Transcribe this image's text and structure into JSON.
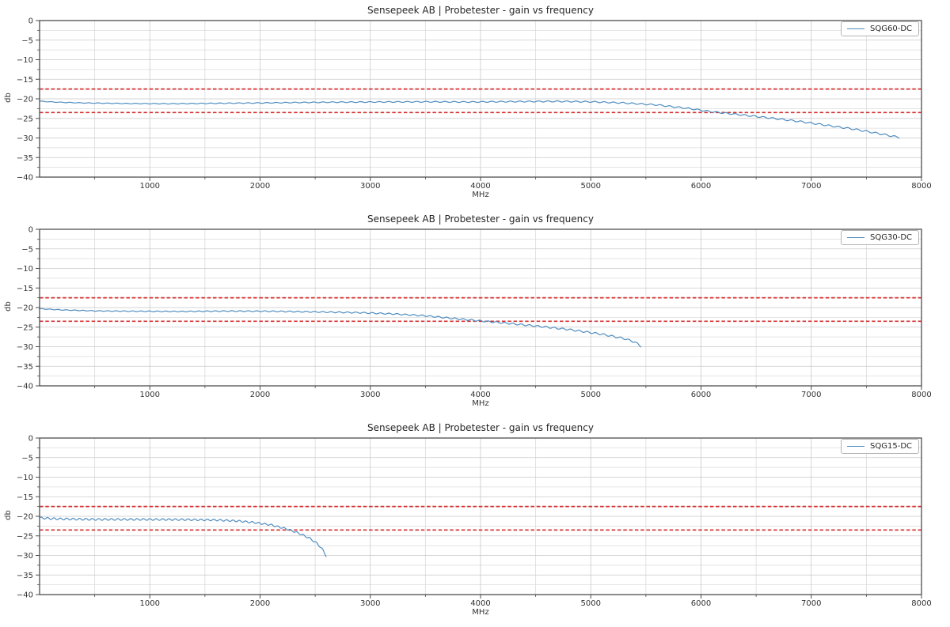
{
  "page": {
    "background": "#ffffff"
  },
  "colors": {
    "series": "#4f8dc0",
    "limit_line": "#d62f2f",
    "grid_major": "#c9c9c9",
    "grid_minor": "#dbdbdb",
    "spine": "#4d4d4d",
    "title_text": "#262626",
    "tick_text": "#333333"
  },
  "chart_data": [
    {
      "type": "line",
      "title": "Sensepeek AB | Probetester - gain vs frequency",
      "xlabel": "MHz",
      "ylabel": "db",
      "xlim": [
        0,
        8000
      ],
      "ylim": [
        -40,
        0
      ],
      "x_ticks": [
        1000,
        2000,
        3000,
        4000,
        5000,
        6000,
        7000,
        8000
      ],
      "x_tick_labels": [
        "1000",
        "2000",
        "3000",
        "4000",
        "5000",
        "6000",
        "7000",
        "8000"
      ],
      "y_ticks": [
        0,
        -5,
        -10,
        -15,
        -20,
        -25,
        -30,
        -35,
        -40
      ],
      "y_tick_labels": [
        "0",
        "−5",
        "−10",
        "−15",
        "−20",
        "−25",
        "−30",
        "−35",
        "−40"
      ],
      "x_minor_step": 500,
      "y_minor_step": 2.5,
      "grid": true,
      "legend": {
        "position": "upper right",
        "entries": [
          "SQG60-DC"
        ]
      },
      "limit_lines": {
        "values": [
          -17.5,
          -23.5
        ],
        "linestyle": "dashed"
      },
      "series": [
        {
          "name": "SQG60-DC",
          "points": [
            [
              0,
              -20.6
            ],
            [
              150,
              -20.85
            ],
            [
              400,
              -21.05
            ],
            [
              800,
              -21.2
            ],
            [
              1200,
              -21.25
            ],
            [
              1600,
              -21.15
            ],
            [
              2000,
              -21.05
            ],
            [
              2300,
              -20.95
            ],
            [
              2700,
              -20.85
            ],
            [
              3100,
              -20.8
            ],
            [
              3500,
              -20.75
            ],
            [
              3900,
              -20.8
            ],
            [
              4300,
              -20.7
            ],
            [
              4700,
              -20.65
            ],
            [
              5000,
              -20.75
            ],
            [
              5300,
              -21.05
            ],
            [
              5600,
              -21.55
            ],
            [
              5900,
              -22.5
            ],
            [
              6100,
              -23.3
            ],
            [
              6300,
              -23.9
            ],
            [
              6600,
              -24.8
            ],
            [
              6900,
              -25.8
            ],
            [
              7100,
              -26.6
            ],
            [
              7400,
              -27.8
            ],
            [
              7600,
              -28.8
            ],
            [
              7750,
              -29.6
            ],
            [
              7800,
              -29.85
            ]
          ],
          "ripple_period_mhz": 85,
          "ripple_amp_start_db": 0.06,
          "ripple_amp_end_db": 0.2
        }
      ]
    },
    {
      "type": "line",
      "title": "Sensepeek AB | Probetester - gain vs frequency",
      "xlabel": "MHz",
      "ylabel": "db",
      "xlim": [
        0,
        8000
      ],
      "ylim": [
        -40,
        0
      ],
      "x_ticks": [
        1000,
        2000,
        3000,
        4000,
        5000,
        6000,
        7000,
        8000
      ],
      "x_tick_labels": [
        "1000",
        "2000",
        "3000",
        "4000",
        "5000",
        "6000",
        "7000",
        "8000"
      ],
      "y_ticks": [
        0,
        -5,
        -10,
        -15,
        -20,
        -25,
        -30,
        -35,
        -40
      ],
      "y_tick_labels": [
        "0",
        "−5",
        "−10",
        "−15",
        "−20",
        "−25",
        "−30",
        "−35",
        "−40"
      ],
      "x_minor_step": 500,
      "y_minor_step": 2.5,
      "grid": true,
      "legend": {
        "position": "upper right",
        "entries": [
          "SQG30-DC"
        ]
      },
      "limit_lines": {
        "values": [
          -17.5,
          -23.5
        ],
        "linestyle": "dashed"
      },
      "series": [
        {
          "name": "SQG30-DC",
          "points": [
            [
              0,
              -20.3
            ],
            [
              200,
              -20.6
            ],
            [
              500,
              -20.85
            ],
            [
              900,
              -20.95
            ],
            [
              1300,
              -21.0
            ],
            [
              1700,
              -20.9
            ],
            [
              2100,
              -20.95
            ],
            [
              2500,
              -21.1
            ],
            [
              2900,
              -21.3
            ],
            [
              3200,
              -21.6
            ],
            [
              3500,
              -22.1
            ],
            [
              3800,
              -22.9
            ],
            [
              4000,
              -23.4
            ],
            [
              4200,
              -23.9
            ],
            [
              4500,
              -24.7
            ],
            [
              4800,
              -25.6
            ],
            [
              5100,
              -26.8
            ],
            [
              5300,
              -27.9
            ],
            [
              5400,
              -28.8
            ],
            [
              5460,
              -30.0
            ]
          ],
          "ripple_period_mhz": 75,
          "ripple_amp_start_db": 0.07,
          "ripple_amp_end_db": 0.22
        }
      ]
    },
    {
      "type": "line",
      "title": "Sensepeek AB | Probetester - gain vs frequency",
      "xlabel": "MHz",
      "ylabel": "db",
      "xlim": [
        0,
        8000
      ],
      "ylim": [
        -40,
        0
      ],
      "x_ticks": [
        1000,
        2000,
        3000,
        4000,
        5000,
        6000,
        7000,
        8000
      ],
      "x_tick_labels": [
        "1000",
        "2000",
        "3000",
        "4000",
        "5000",
        "6000",
        "7000",
        "8000"
      ],
      "y_ticks": [
        0,
        -5,
        -10,
        -15,
        -20,
        -25,
        -30,
        -35,
        -40
      ],
      "y_tick_labels": [
        "0",
        "−5",
        "−10",
        "−15",
        "−20",
        "−25",
        "−30",
        "−35",
        "−40"
      ],
      "x_minor_step": 500,
      "y_minor_step": 2.5,
      "grid": true,
      "legend": {
        "position": "upper right",
        "entries": [
          "SQG15-DC"
        ]
      },
      "limit_lines": {
        "values": [
          -17.5,
          -23.5
        ],
        "linestyle": "dashed"
      },
      "series": [
        {
          "name": "SQG15-DC",
          "points": [
            [
              0,
              -20.4
            ],
            [
              150,
              -20.65
            ],
            [
              500,
              -20.8
            ],
            [
              900,
              -20.8
            ],
            [
              1300,
              -20.85
            ],
            [
              1600,
              -20.95
            ],
            [
              1800,
              -21.2
            ],
            [
              1950,
              -21.6
            ],
            [
              2100,
              -22.2
            ],
            [
              2250,
              -23.3
            ],
            [
              2350,
              -24.3
            ],
            [
              2450,
              -25.6
            ],
            [
              2520,
              -27.0
            ],
            [
              2570,
              -28.6
            ],
            [
              2600,
              -30.2
            ]
          ],
          "ripple_period_mhz": 58,
          "ripple_amp_start_db": 0.24,
          "ripple_amp_end_db": 0.2
        }
      ]
    }
  ]
}
